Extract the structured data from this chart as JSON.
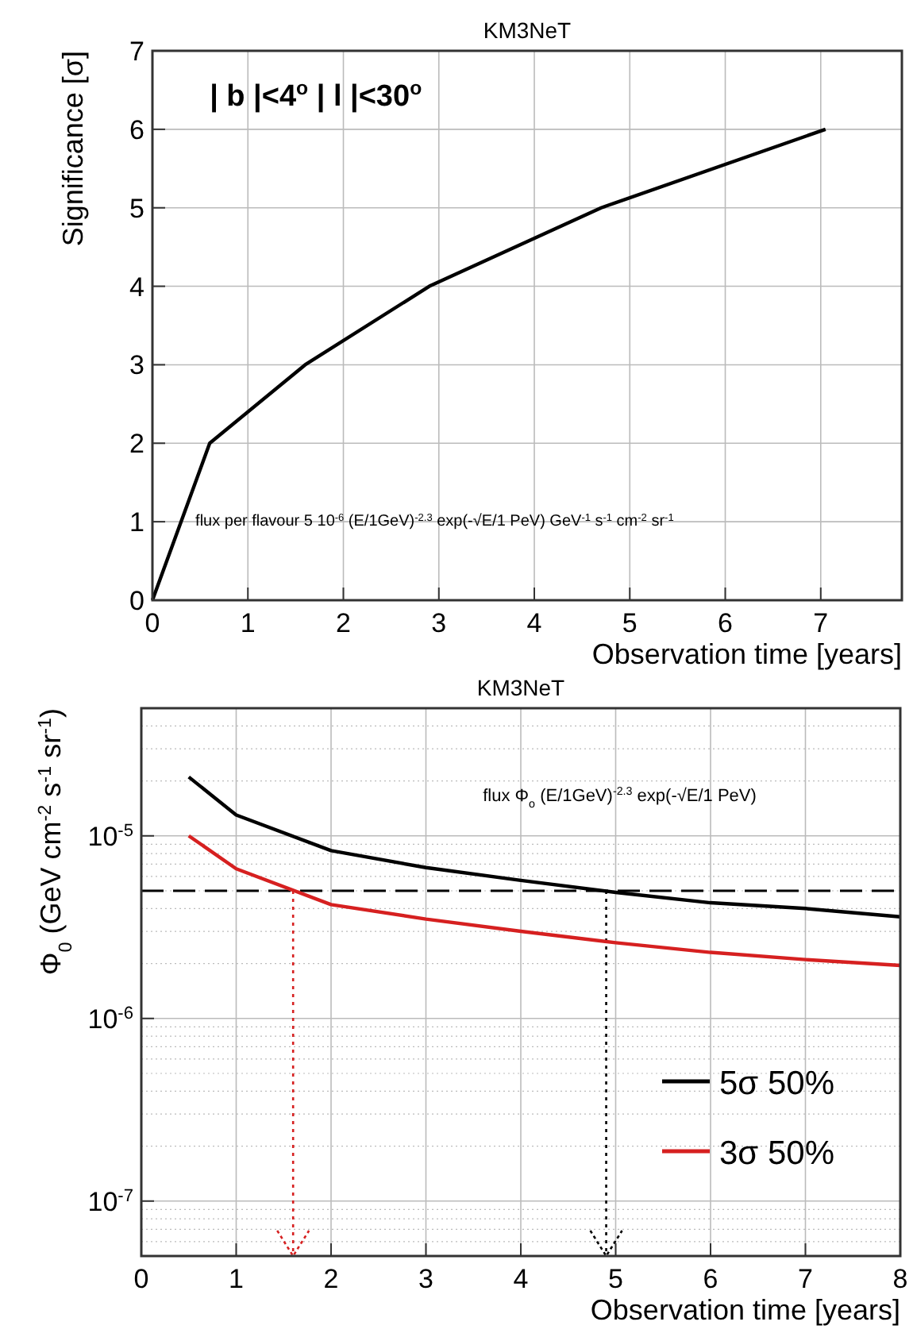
{
  "chart_data": [
    {
      "type": "line",
      "title": "KM3NeT",
      "xlabel": "Observation time [years]",
      "ylabel": "Significance [σ]",
      "x": [
        0,
        0.6,
        1.6,
        2.9,
        4.7,
        7.05
      ],
      "series": [
        {
          "color": "#000000",
          "values": [
            0,
            2,
            3,
            4,
            5,
            6
          ]
        }
      ],
      "xlim": [
        0,
        7.85
      ],
      "xticks": [
        0,
        1,
        2,
        3,
        4,
        5,
        6,
        7
      ],
      "ylim": [
        0,
        7
      ],
      "yticks": [
        0,
        1,
        2,
        3,
        4,
        5,
        6,
        7
      ],
      "grid": true,
      "line_style": "solid",
      "annotations": [
        "| b |<4$^{o}$ | l |<30$^{o}$",
        "flux per flavour 5 10$^{-6}$ (E/1GeV)$^{-2.3}$ exp(-√E/1 PeV) GeV$^{-1}$ s$^{-1}$ cm$^{-2}$ sr$^{-1}$"
      ]
    },
    {
      "type": "line",
      "title": "KM3NeT",
      "xlabel": "Observation time [years]",
      "ylabel": "Φ$_{0}$ (GeV cm$^{-2}$ s$^{-1}$ sr$^{-1}$)",
      "x": [
        0.5,
        1,
        2,
        3,
        4,
        5,
        6,
        7,
        8
      ],
      "series": [
        {
          "name": "5σ 50%",
          "color": "#000000",
          "values": [
            2.1e-05,
            1.3e-05,
            8.3e-06,
            6.7e-06,
            5.7e-06,
            4.9e-06,
            4.3e-06,
            4e-06,
            3.6e-06
          ]
        },
        {
          "name": "3σ 50%",
          "color": "#d62020",
          "values": [
            1e-05,
            6.6e-06,
            4.2e-06,
            3.5e-06,
            3e-06,
            2.6e-06,
            2.3e-06,
            2.1e-06,
            1.95e-06
          ]
        }
      ],
      "xlim": [
        0,
        8
      ],
      "xticks": [
        0,
        1,
        2,
        3,
        4,
        5,
        6,
        7,
        8
      ],
      "ylim": [
        5e-08,
        5e-05
      ],
      "yticks": [
        {
          "value": 1e-07,
          "label": "10$^{-7}$"
        },
        {
          "value": 1e-06,
          "label": "10$^{-6}$"
        },
        {
          "value": 1e-05,
          "label": "10$^{-5}$"
        }
      ],
      "log": "y",
      "grid": true,
      "legend": "bottom right",
      "line_style": "solid",
      "ref_lines": [
        {
          "axis": "y",
          "value": 5e-06,
          "color": "#000000",
          "line_style": "dashed"
        },
        {
          "axis": "x",
          "value": 1.6,
          "color": "#d62020",
          "line_style": "dotted"
        },
        {
          "axis": "x",
          "value": 4.9,
          "color": "#000000",
          "line_style": "dotted"
        }
      ],
      "annotations": [
        "flux Φ$_{o}$ (E/1GeV)$^{-2.3}$ exp(-√E/1 PeV)"
      ]
    }
  ]
}
